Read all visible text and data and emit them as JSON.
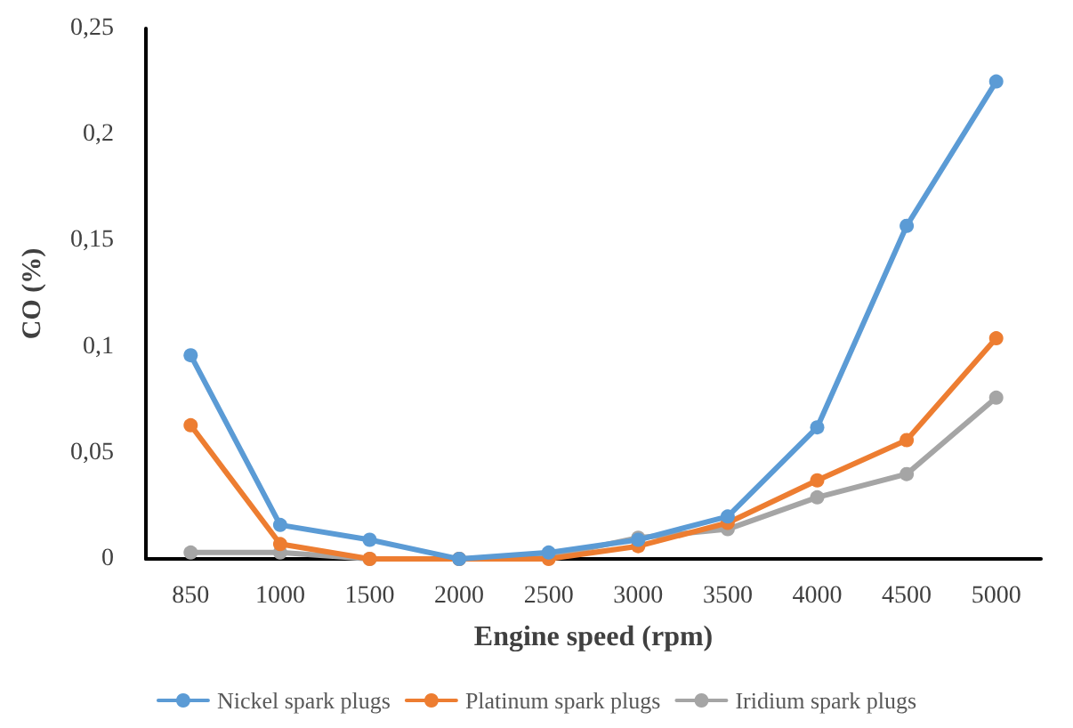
{
  "chart_data": {
    "type": "line",
    "xlabel": "Engine speed (rpm)",
    "ylabel": "CO (%)",
    "categories": [
      "850",
      "1000",
      "1500",
      "2000",
      "2500",
      "3000",
      "3500",
      "4000",
      "4500",
      "5000"
    ],
    "series": [
      {
        "name": "Nickel spark plugs",
        "color": "#5b9bd5",
        "values": [
          0.096,
          0.016,
          0.009,
          0,
          0.003,
          0.009,
          0.02,
          0.062,
          0.157,
          0.225
        ]
      },
      {
        "name": "Platinum spark plugs",
        "color": "#ed7d31",
        "values": [
          0.063,
          0.007,
          0,
          0,
          0,
          0.006,
          0.017,
          0.037,
          0.056,
          0.104
        ]
      },
      {
        "name": "Iridium spark plugs",
        "color": "#a5a5a5",
        "values": [
          0.003,
          0.003,
          0,
          0,
          0.001,
          0.01,
          0.014,
          0.029,
          0.04,
          0.076
        ]
      }
    ],
    "ylim": [
      0,
      0.25
    ],
    "yticks": [
      0,
      {
        "value": 0.05,
        "label": "0,05"
      },
      {
        "value": 0.1,
        "label": "0,1"
      },
      {
        "value": 0.15,
        "label": "0,15"
      },
      {
        "value": 0.2,
        "label": "0,2"
      },
      {
        "value": 0.25,
        "label": "0,25"
      }
    ],
    "grid": false,
    "legend": "bottom",
    "marker": "circle",
    "line_style": "solid"
  }
}
